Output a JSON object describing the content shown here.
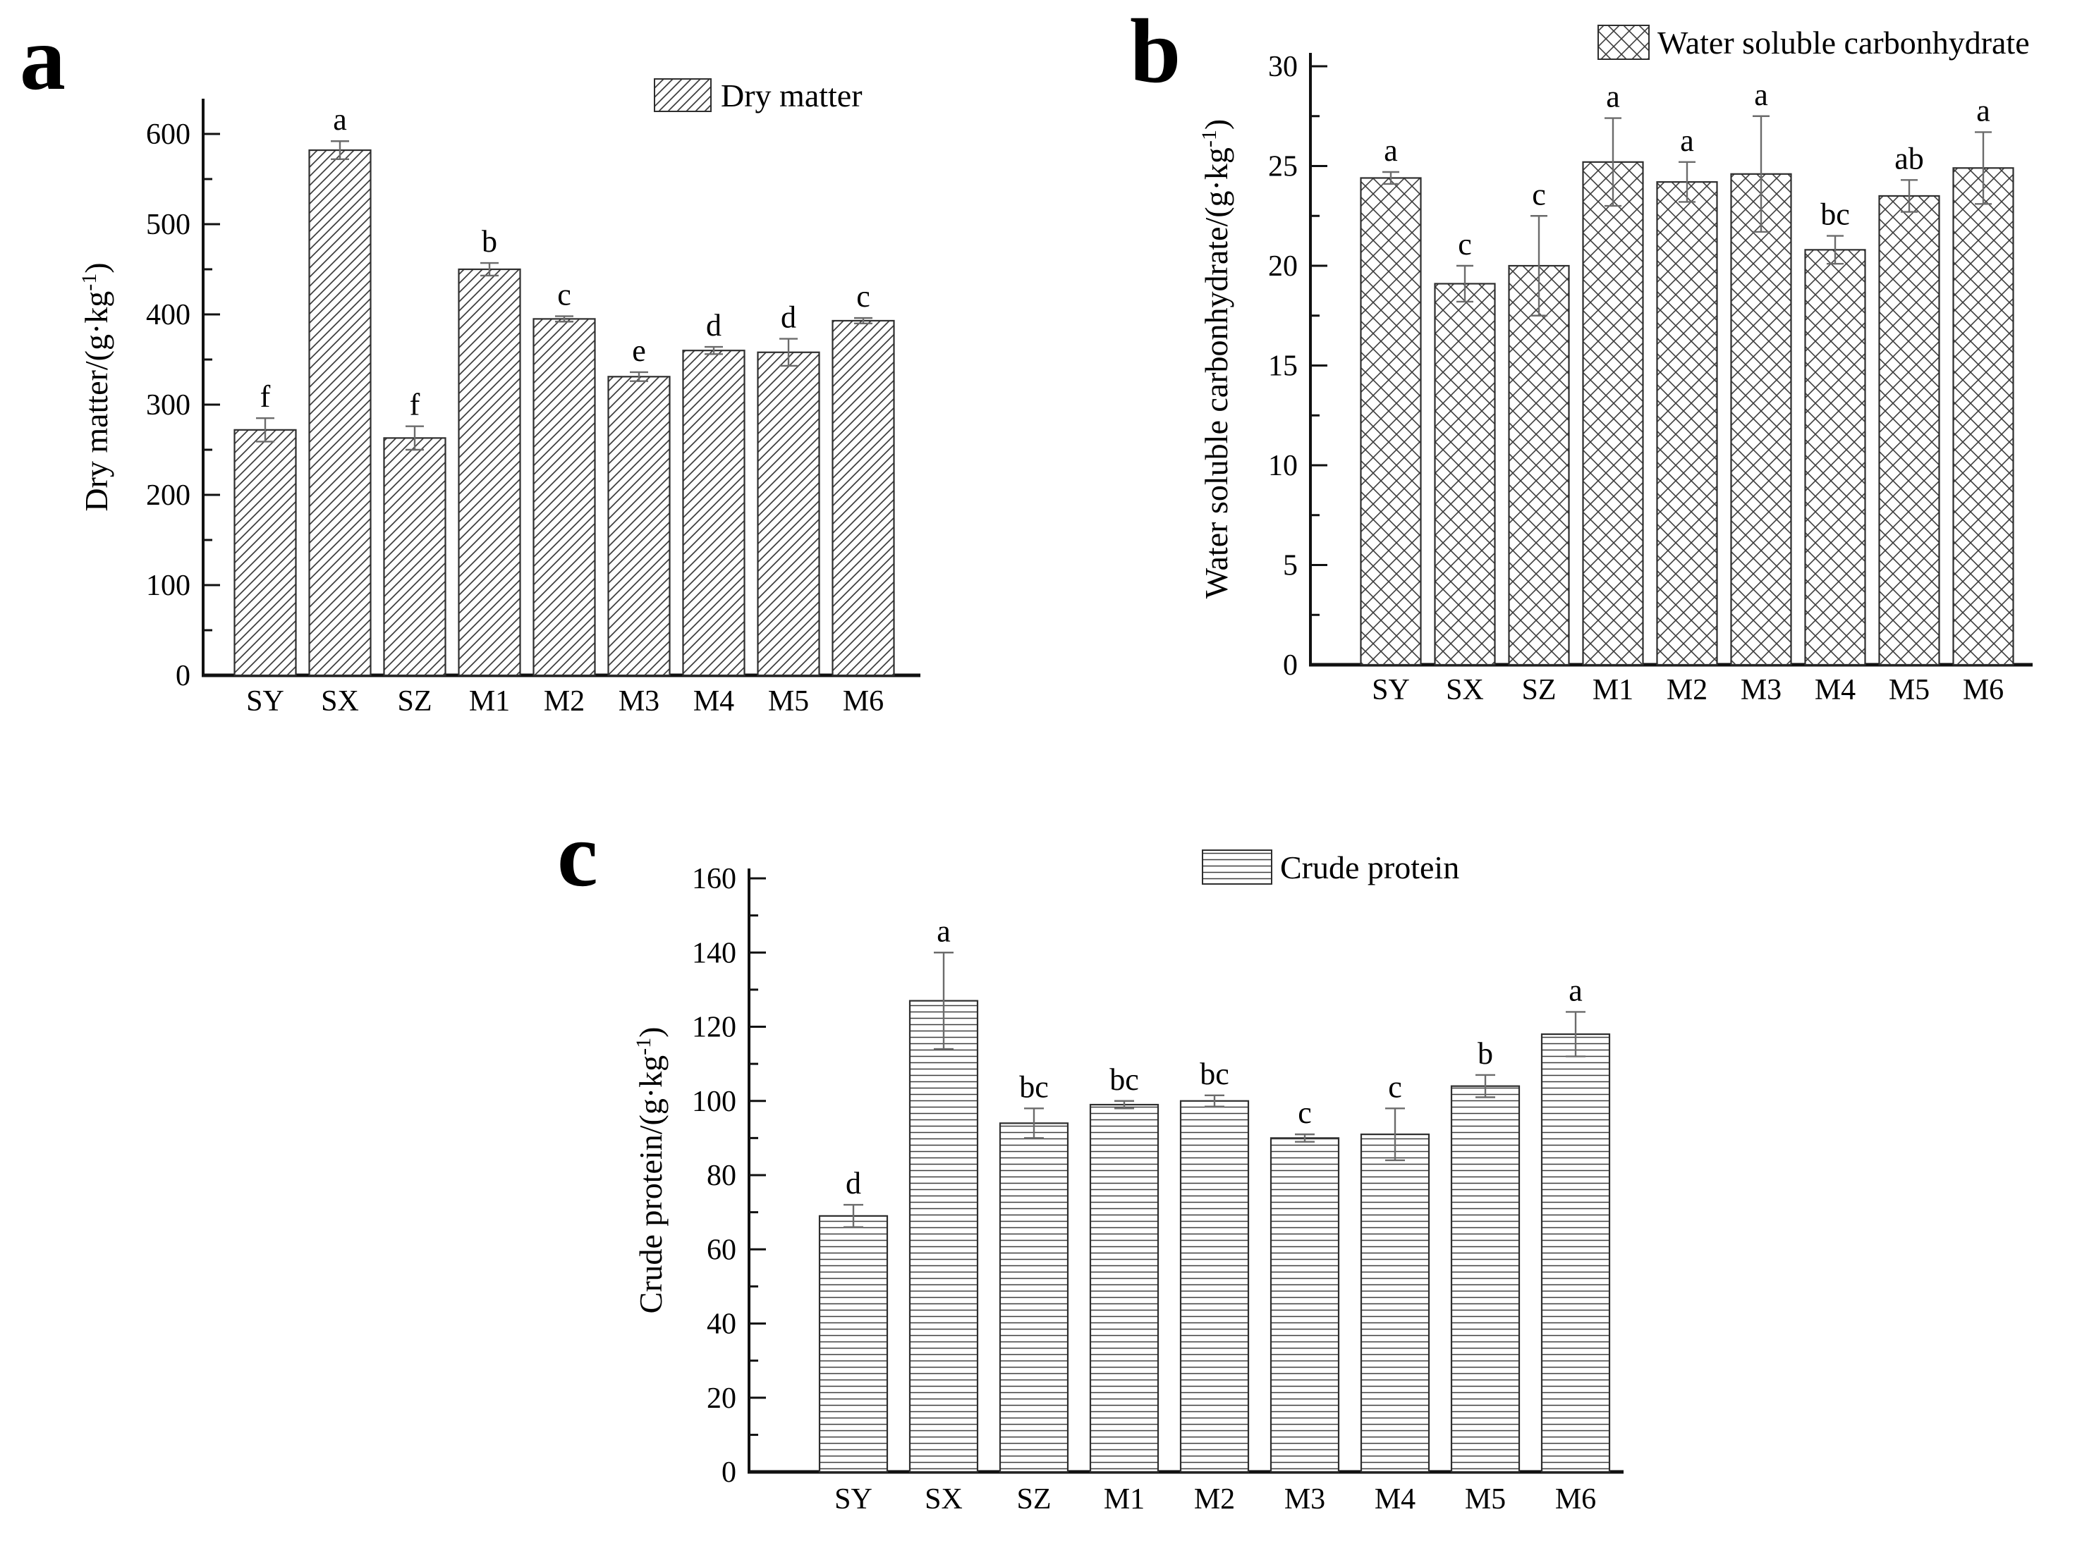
{
  "figure": {
    "background": "#ffffff",
    "panels": [
      {
        "id": "a",
        "panel_letter": "a"
      },
      {
        "id": "b",
        "panel_letter": "b"
      },
      {
        "id": "c",
        "panel_letter": "c"
      }
    ],
    "colors": {
      "axis": "#111111",
      "text": "#000000",
      "bar_fill": "#ffffff",
      "bar_stroke": "#2e2e2e",
      "hatch_line": "#3d3d3d",
      "error_bar": "#6b6b6b"
    }
  },
  "chart_data": [
    {
      "type": "bar",
      "panel": "a",
      "title": "",
      "legend": "Dry matter",
      "legend_position": "top-right-inside",
      "hatch": "diagonal",
      "xlabel": "",
      "ylabel": "Dry matter/(g·kg⁻¹)",
      "categories": [
        "SY",
        "SX",
        "SZ",
        "M1",
        "M2",
        "M3",
        "M4",
        "M5",
        "M6"
      ],
      "values": [
        272,
        582,
        263,
        450,
        395,
        331,
        360,
        358,
        393
      ],
      "errors": [
        13,
        10,
        13,
        7,
        3,
        5,
        4,
        15,
        3
      ],
      "sig_letters": [
        "f",
        "a",
        "f",
        "b",
        "c",
        "e",
        "d",
        "d",
        "c"
      ],
      "ylim": [
        0,
        600
      ],
      "ytick_major": 100,
      "ytick_minor": 50,
      "ytick_labels": [
        "0",
        "100",
        "200",
        "300",
        "400",
        "500",
        "600"
      ],
      "grid": false
    },
    {
      "type": "bar",
      "panel": "b",
      "title": "",
      "legend": "Water soluble carbonhydrate",
      "legend_position": "top-right-inside",
      "hatch": "crosshatch",
      "xlabel": "",
      "ylabel": "Water soluble carbonhydrate/(g·kg⁻¹)",
      "categories": [
        "SY",
        "SX",
        "SZ",
        "M1",
        "M2",
        "M3",
        "M4",
        "M5",
        "M6"
      ],
      "values": [
        24.4,
        19.1,
        20.0,
        25.2,
        24.2,
        24.6,
        20.8,
        23.5,
        24.9
      ],
      "errors": [
        0.3,
        0.9,
        2.5,
        2.2,
        1.0,
        2.9,
        0.7,
        0.8,
        1.8
      ],
      "sig_letters": [
        "a",
        "c",
        "c",
        "a",
        "a",
        "a",
        "bc",
        "ab",
        "a"
      ],
      "ylim": [
        0,
        30
      ],
      "ytick_major": 5,
      "ytick_minor": 2.5,
      "ytick_labels": [
        "0",
        "5",
        "10",
        "15",
        "20",
        "25",
        "30"
      ],
      "grid": false
    },
    {
      "type": "bar",
      "panel": "c",
      "title": "",
      "legend": "Crude protein",
      "legend_position": "top-right-inside",
      "hatch": "horizontal",
      "xlabel": "",
      "ylabel": "Crude protein/(g·kg⁻¹)",
      "categories": [
        "SY",
        "SX",
        "SZ",
        "M1",
        "M2",
        "M3",
        "M4",
        "M5",
        "M6"
      ],
      "values": [
        69,
        127,
        94,
        99,
        100,
        90,
        91,
        104,
        118
      ],
      "errors": [
        3,
        13,
        4,
        1,
        1.5,
        1,
        7,
        3,
        6
      ],
      "sig_letters": [
        "d",
        "a",
        "bc",
        "bc",
        "bc",
        "c",
        "c",
        "b",
        "a"
      ],
      "ylim": [
        0,
        160
      ],
      "ytick_major": 20,
      "ytick_minor": 10,
      "ytick_labels": [
        "0",
        "20",
        "40",
        "60",
        "80",
        "100",
        "120",
        "140",
        "160"
      ],
      "grid": false
    }
  ]
}
